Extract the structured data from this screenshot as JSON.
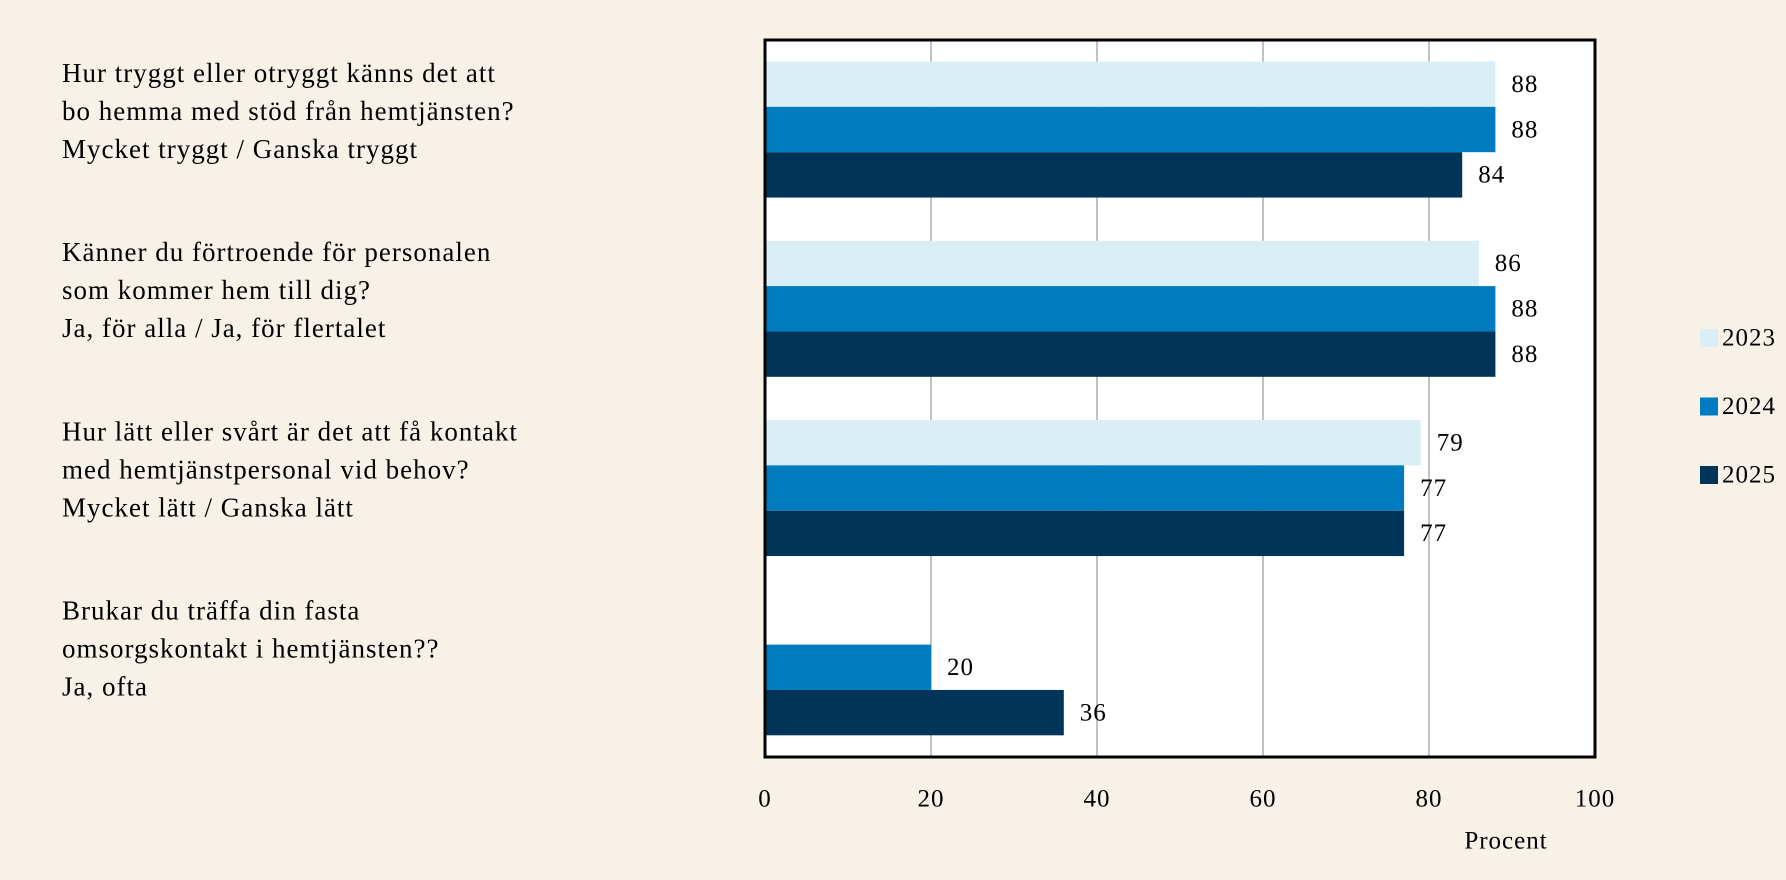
{
  "chart_data": {
    "type": "bar",
    "orientation": "horizontal",
    "categories": [
      [
        "Hur tryggt eller otryggt känns det att",
        "bo hemma med stöd från hemtjänsten?",
        "Mycket tryggt / Ganska tryggt"
      ],
      [
        "Känner du förtroende för personalen",
        "som kommer hem till dig?",
        "Ja, för alla / Ja, för flertalet"
      ],
      [
        "Hur lätt eller svårt är det att få kontakt",
        "med hemtjänstpersonal vid behov?",
        "Mycket lätt / Ganska lätt"
      ],
      [
        "Brukar du träffa din fasta",
        "omsorgskontakt i hemtjänsten??",
        "Ja, ofta"
      ]
    ],
    "series": [
      {
        "name": "2023",
        "color": "#daeef6",
        "values": [
          88,
          86,
          79,
          null
        ]
      },
      {
        "name": "2024",
        "color": "#007bbf",
        "values": [
          88,
          88,
          77,
          20
        ]
      },
      {
        "name": "2025",
        "color": "#003459",
        "values": [
          84,
          88,
          77,
          36
        ]
      }
    ],
    "x_label": "Procent",
    "xlim": [
      0,
      100
    ],
    "xticks": [
      0,
      20,
      40,
      60,
      80,
      100
    ],
    "grid": true,
    "legend": "right"
  }
}
